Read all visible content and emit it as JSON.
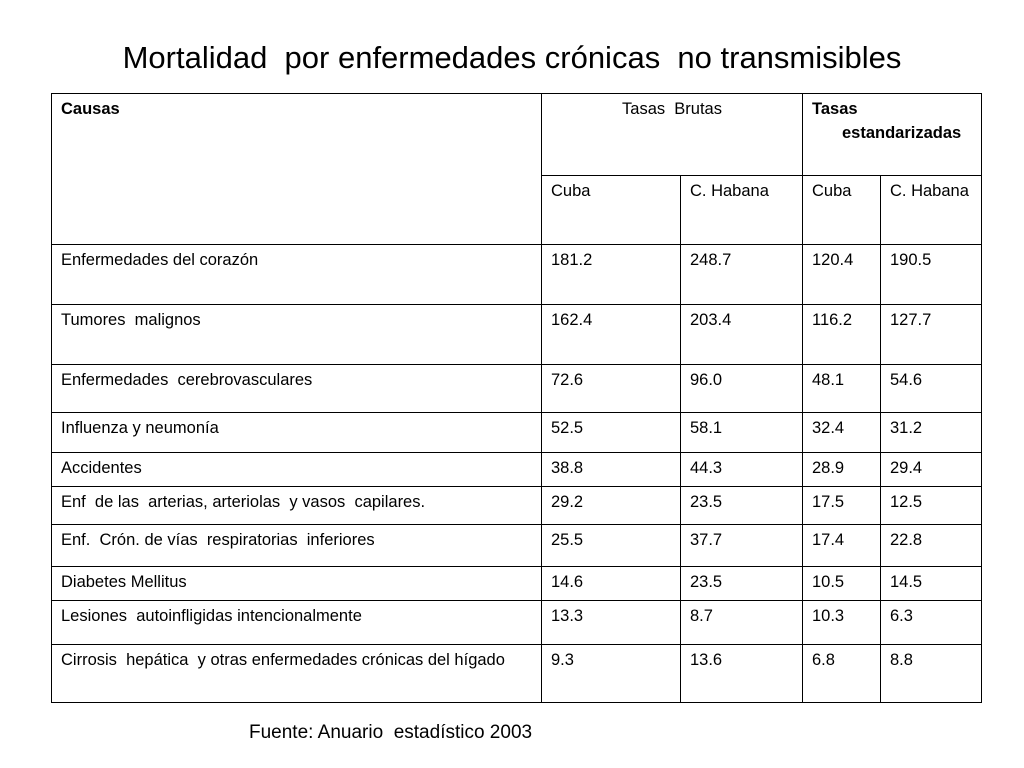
{
  "title": "Mortalidad  por enfermedades crónicas  no transmisibles",
  "table": {
    "header": {
      "causes": "Causas",
      "crude_rates": "Tasas  Brutas",
      "standardized_rates": "Tasas estandarizadas",
      "sub": [
        "Cuba",
        "C. Habana",
        "Cuba",
        "C. Habana"
      ]
    },
    "rows": [
      {
        "cause": "Enfermedades del corazón",
        "values": [
          "181.2",
          "248.7",
          "120.4",
          "190.5"
        ]
      },
      {
        "cause": "Tumores  malignos",
        "values": [
          "162.4",
          "203.4",
          "116.2",
          "127.7"
        ]
      },
      {
        "cause": "Enfermedades  cerebrovasculares",
        "values": [
          "72.6",
          "96.0",
          "48.1",
          "54.6"
        ]
      },
      {
        "cause": "Influenza y neumonía",
        "values": [
          "52.5",
          "58.1",
          "32.4",
          "31.2"
        ]
      },
      {
        "cause": "Accidentes",
        "values": [
          "38.8",
          "44.3",
          "28.9",
          "29.4"
        ]
      },
      {
        "cause": "Enf  de las  arterias, arteriolas  y vasos  capilares.",
        "values": [
          "29.2",
          "23.5",
          "17.5",
          "12.5"
        ]
      },
      {
        "cause": "Enf.  Crón. de vías  respiratorias  inferiores",
        "values": [
          "25.5",
          "37.7",
          "17.4",
          "22.8"
        ]
      },
      {
        "cause": "Diabetes Mellitus",
        "values": [
          "14.6",
          "23.5",
          "10.5",
          "14.5"
        ]
      },
      {
        "cause": "Lesiones  autoinfligidas intencionalmente",
        "values": [
          "13.3",
          "8.7",
          "10.3",
          "6.3"
        ]
      },
      {
        "cause": "Cirrosis  hepática  y otras enfermedades crónicas del hígado",
        "values": [
          "9.3",
          "13.6",
          "6.8",
          "8.8"
        ]
      }
    ]
  },
  "source": "Fuente: Anuario  estadístico 2003"
}
